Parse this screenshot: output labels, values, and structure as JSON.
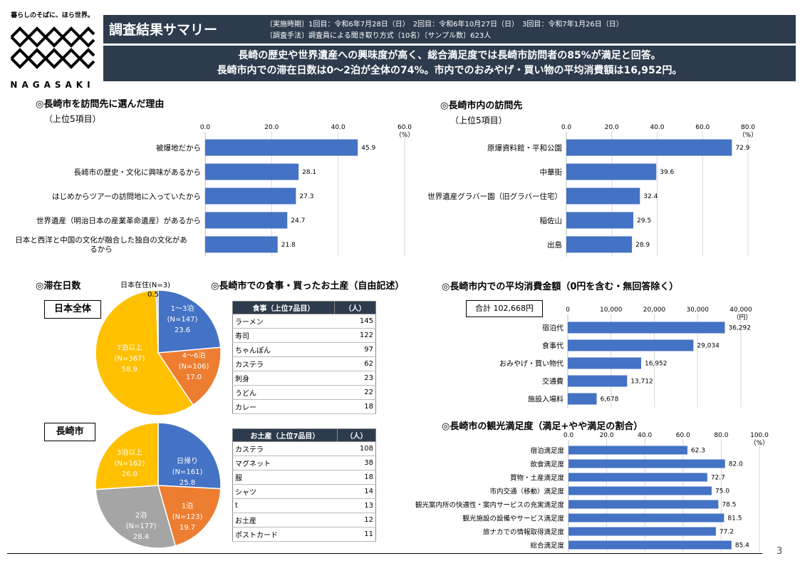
{
  "logo": {
    "tagline": "暮らしのそばに、ほら世界。",
    "name": "NAGASAKI"
  },
  "header": {
    "title": "調査結果サマリー",
    "period_line": "〔実施時期〕1回目：令和6年7月28日（日）　2回目：令和6年10月27日（日）　3回目：令和7年1月26日（日）",
    "method_line": "〔調査手法〕調査員による聞き取り方式（10名）〔サンプル数〕623人"
  },
  "summary": {
    "line1": "長崎の歴史や世界遺産への興味度が高く、総合満足度では長崎市訪問者の85%が満足と回答。",
    "line2": "長崎市内での滞在日数は0～2泊が全体の74%。市内でのおみやげ・買い物の平均消費額は16,952円。"
  },
  "sections": {
    "reasons": "◎長崎市を訪問先に選んだ理由",
    "reasons_sub": "（上位5項目）",
    "visits": "◎長崎市内の訪問先",
    "visits_sub": "（上位5項目）",
    "stay": "◎滞在日数",
    "food": "◎長崎市での食事・買ったお土産（自由記述）",
    "spend": "◎長崎市内での平均消費金額（0円を含む・無回答除く）",
    "satisfaction": "◎長崎市の観光満足度（満足+やや満足の割合）"
  },
  "scope_labels": {
    "japan": "日本全体",
    "nagasaki": "長崎市"
  },
  "spend_total": "合計 102,668円",
  "tables": {
    "food": {
      "headers": [
        "食事（上位7品目）",
        "（人）"
      ],
      "rows": [
        [
          "ラーメン",
          "145"
        ],
        [
          "寿司",
          "122"
        ],
        [
          "ちゃんぽん",
          "97"
        ],
        [
          "カステラ",
          "62"
        ],
        [
          "刺身",
          "23"
        ],
        [
          "うどん",
          "22"
        ],
        [
          "カレー",
          "18"
        ]
      ]
    },
    "souvenir": {
      "headers": [
        "お土産（上位7品目）",
        "（人）"
      ],
      "rows": [
        [
          "カステラ",
          "108"
        ],
        [
          "マグネット",
          "38"
        ],
        [
          "服",
          "18"
        ],
        [
          "シャツ",
          "14"
        ],
        [
          "t",
          "13"
        ],
        [
          "お土産",
          "12"
        ],
        [
          "ポストカード",
          "11"
        ]
      ]
    }
  },
  "chart_data": [
    {
      "type": "bar",
      "id": "reasons",
      "categories": [
        "被爆地だから",
        "長崎市の歴史・文化に興味があるから",
        "はじめからツアーの訪問地に入っていたから",
        "世界遺産（明治日本の産業革命遺産）があるから",
        "日本と西洋と中国の文化が融合した独自の文化があるから"
      ],
      "values": [
        45.9,
        28.1,
        27.3,
        24.7,
        21.8
      ],
      "unit": "（%）",
      "xlim": [
        0,
        60
      ],
      "ticks": [
        "0.0",
        "20.0",
        "40.0",
        "60.0"
      ],
      "color": "#4472c4"
    },
    {
      "type": "bar",
      "id": "visits",
      "categories": [
        "原爆資料館・平和公園",
        "中華街",
        "世界遺産グラバー園（旧グラバー住宅）",
        "稲佐山",
        "出島"
      ],
      "values": [
        72.9,
        39.6,
        32.4,
        29.5,
        28.9
      ],
      "unit": "（%）",
      "xlim": [
        0,
        80
      ],
      "ticks": [
        "0.0",
        "20.0",
        "40.0",
        "60.0",
        "80.0"
      ],
      "color": "#4472c4"
    },
    {
      "type": "pie",
      "id": "stay-japan",
      "slices": [
        {
          "label": "1～3泊",
          "n": "(N=147)",
          "value": 23.6,
          "color": "#4472c4"
        },
        {
          "label": "4～6泊",
          "n": "(N=106)",
          "value": 17.0,
          "color": "#ed7d31"
        },
        {
          "label": "7泊以上",
          "n": "(N=367)",
          "value": 58.9,
          "color": "#ffc000"
        },
        {
          "label": "日本在住",
          "n": "(N=3)",
          "value": 0.5,
          "color": "#a5a5a5"
        }
      ]
    },
    {
      "type": "pie",
      "id": "stay-nagasaki",
      "slices": [
        {
          "label": "日帰り",
          "n": "(N=161)",
          "value": 25.8,
          "color": "#4472c4"
        },
        {
          "label": "1泊",
          "n": "(N=123)",
          "value": 19.7,
          "color": "#ed7d31"
        },
        {
          "label": "2泊",
          "n": "(N=177)",
          "value": 28.4,
          "color": "#a5a5a5"
        },
        {
          "label": "3泊以上",
          "n": "(N=162)",
          "value": 26.0,
          "color": "#ffc000"
        }
      ]
    },
    {
      "type": "bar",
      "id": "spend",
      "categories": [
        "宿泊代",
        "食事代",
        "おみやげ・買い物代",
        "交通費",
        "施設入場料"
      ],
      "values": [
        36292,
        29034,
        16952,
        13712,
        6678
      ],
      "value_labels": [
        "36,292",
        "29,034",
        "16,952",
        "13,712",
        "6,678"
      ],
      "unit": "（円）",
      "xlim": [
        0,
        40000
      ],
      "ticks": [
        "0",
        "10,000",
        "20,000",
        "30,000",
        "40,000"
      ],
      "color": "#4472c4"
    },
    {
      "type": "bar",
      "id": "satisfaction",
      "categories": [
        "宿泊満足度",
        "飲食満足度",
        "買物・土産満足度",
        "市内交通（移動）満足度",
        "観光案内所の快適性・案内サービスの充実満足度",
        "観光施設の設備やサービス満足度",
        "旅ナカでの情報取得満足度",
        "総合満足度"
      ],
      "values": [
        62.3,
        82.0,
        72.7,
        75.0,
        78.5,
        81.5,
        77.2,
        85.4
      ],
      "value_labels": [
        "62.3",
        "82.0",
        "72.7",
        "75.0",
        "78.5",
        "81.5",
        "77.2",
        "85.4"
      ],
      "unit": "（%）",
      "xlim": [
        0,
        100
      ],
      "ticks": [
        "0.0",
        "20.0",
        "40.0",
        "60.0",
        "80.0",
        "100.0"
      ],
      "color": "#4472c4"
    }
  ],
  "page_number": "3"
}
